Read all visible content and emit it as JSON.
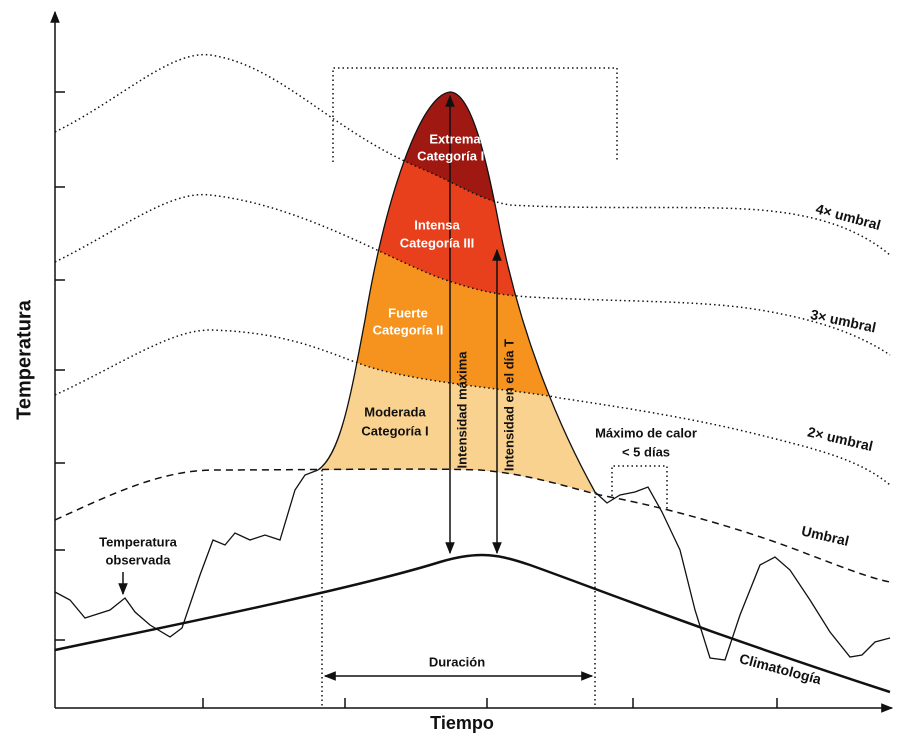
{
  "axes": {
    "y_label": "Temperatura",
    "x_label": "Tiempo"
  },
  "categories": [
    {
      "name": "Extrema",
      "level": "Categoría IV"
    },
    {
      "name": "Intensa",
      "level": "Categoría III"
    },
    {
      "name": "Fuerte",
      "level": "Categoría II"
    },
    {
      "name": "Moderada",
      "level": "Categoría I"
    }
  ],
  "lines": {
    "four": "4× umbral",
    "three": "3× umbral",
    "two": "2× umbral",
    "threshold": "Umbral",
    "climatology": "Climatología"
  },
  "annotations": {
    "observed": [
      "Temperatura",
      "observada"
    ],
    "max_intensity": "Intensidad máxima",
    "day_intensity": "Intensidad en el día T",
    "duration": "Duración",
    "short_peak": [
      "Máximo de calor",
      "< 5 días"
    ]
  }
}
